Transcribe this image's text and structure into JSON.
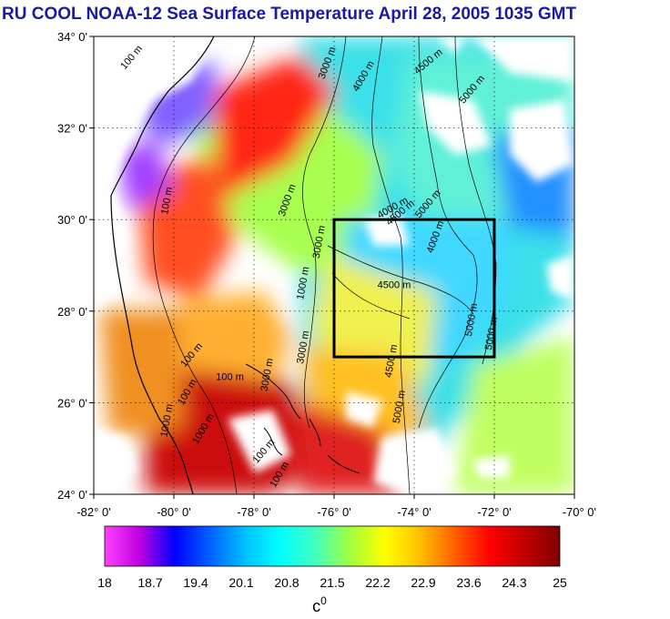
{
  "title": "RU COOL  NOAA-12 Sea Surface Temperature April 28, 2005 1035 GMT",
  "map": {
    "lon_range": [
      -82,
      -70
    ],
    "lat_range": [
      24,
      34
    ],
    "lat_ticks": [
      "34° 0'",
      "32° 0'",
      "30° 0'",
      "28° 0'",
      "26° 0'",
      "24° 0'"
    ],
    "lon_ticks": [
      "-82° 0'",
      "-80° 0'",
      "-78° 0'",
      "-76° 0'",
      "-74° 0'",
      "-72° 0'",
      "-70° 0'"
    ],
    "grid": true,
    "study_box": {
      "lon": [
        -76,
        -72
      ],
      "lat": [
        27,
        30
      ]
    },
    "contour_labels": [
      {
        "text": "100 m",
        "lon": -81.0,
        "lat": 33.5,
        "rot": -50
      },
      {
        "text": "3000 m",
        "lon": -76.1,
        "lat": 33.4,
        "rot": -70
      },
      {
        "text": "4000 m",
        "lon": -75.2,
        "lat": 33.1,
        "rot": -60
      },
      {
        "text": "4500 m",
        "lon": -73.6,
        "lat": 33.4,
        "rot": -40
      },
      {
        "text": "5000 m",
        "lon": -72.5,
        "lat": 32.8,
        "rot": -50
      },
      {
        "text": "100 m",
        "lon": -80.1,
        "lat": 30.4,
        "rot": -80
      },
      {
        "text": "3000 m",
        "lon": -77.1,
        "lat": 30.4,
        "rot": -70
      },
      {
        "text": "4000 m",
        "lon": -74.5,
        "lat": 30.2,
        "rot": -30
      },
      {
        "text": "4500 m",
        "lon": -74.3,
        "lat": 30.1,
        "rot": -40
      },
      {
        "text": "5000 m",
        "lon": -73.6,
        "lat": 30.3,
        "rot": -50
      },
      {
        "text": "4000 m",
        "lon": -73.4,
        "lat": 29.6,
        "rot": -70
      },
      {
        "text": "1000 m",
        "lon": -76.7,
        "lat": 28.6,
        "rot": -80
      },
      {
        "text": "3000 m",
        "lon": -76.3,
        "lat": 29.5,
        "rot": -80
      },
      {
        "text": "4500 m",
        "lon": -74.5,
        "lat": 28.5,
        "rot": 0
      },
      {
        "text": "5000 m",
        "lon": -72.5,
        "lat": 27.8,
        "rot": -80
      },
      {
        "text": "5000 m",
        "lon": -72.0,
        "lat": 27.5,
        "rot": -80
      },
      {
        "text": "3000 m",
        "lon": -76.7,
        "lat": 27.2,
        "rot": -80
      },
      {
        "text": "4500 m",
        "lon": -74.5,
        "lat": 26.9,
        "rot": -80
      },
      {
        "text": "100 m",
        "lon": -79.5,
        "lat": 27.0,
        "rot": -50
      },
      {
        "text": "100 m",
        "lon": -78.6,
        "lat": 26.5,
        "rot": 0
      },
      {
        "text": "100 m",
        "lon": -79.6,
        "lat": 26.2,
        "rot": -60
      },
      {
        "text": "1000 m",
        "lon": -80.1,
        "lat": 25.6,
        "rot": -80
      },
      {
        "text": "1000 m",
        "lon": -79.2,
        "lat": 25.4,
        "rot": -60
      },
      {
        "text": "100 m",
        "lon": -77.7,
        "lat": 24.9,
        "rot": -50
      },
      {
        "text": "3000 m",
        "lon": -77.6,
        "lat": 26.6,
        "rot": -80
      },
      {
        "text": "5000 m",
        "lon": -74.3,
        "lat": 25.9,
        "rot": -80
      },
      {
        "text": "100 m",
        "lon": -77.3,
        "lat": 24.4,
        "rot": -60
      }
    ]
  },
  "colorbar": {
    "min": 18,
    "max": 25,
    "tick_labels": [
      "18",
      "18.7",
      "19.4",
      "20.1",
      "20.8",
      "21.5",
      "22.2",
      "22.9",
      "23.6",
      "24.3",
      "25"
    ],
    "unit": "c",
    "unit_superscript": "0",
    "stops": [
      "#ff40ff",
      "#c000e0",
      "#0000ff",
      "#0060ff",
      "#00c0ff",
      "#00ffff",
      "#40ffc0",
      "#a0ff40",
      "#ffff00",
      "#ffc000",
      "#ff6000",
      "#ff0000",
      "#c00000",
      "#800000"
    ]
  }
}
